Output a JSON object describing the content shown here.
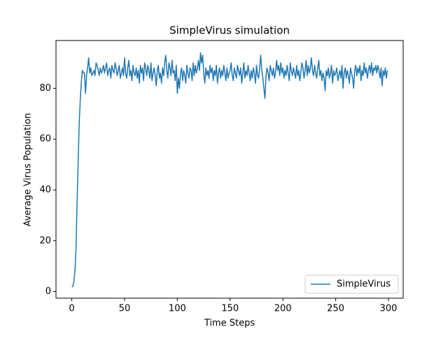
{
  "chart_data": {
    "type": "line",
    "title": "SimpleVirus simulation",
    "xlabel": "Time Steps",
    "ylabel": "Average Virus Population",
    "x": [
      0,
      1,
      2,
      3,
      4,
      5,
      6,
      7,
      8,
      9,
      10,
      11,
      12,
      13,
      14,
      15,
      16,
      17,
      18,
      19,
      20,
      21,
      22,
      23,
      24,
      25,
      26,
      27,
      28,
      29,
      30,
      31,
      32,
      33,
      34,
      35,
      36,
      37,
      38,
      39,
      40,
      41,
      42,
      43,
      44,
      45,
      46,
      47,
      48,
      49,
      50,
      51,
      52,
      53,
      54,
      55,
      56,
      57,
      58,
      59,
      60,
      61,
      62,
      63,
      64,
      65,
      66,
      67,
      68,
      69,
      70,
      71,
      72,
      73,
      74,
      75,
      76,
      77,
      78,
      79,
      80,
      81,
      82,
      83,
      84,
      85,
      86,
      87,
      88,
      89,
      90,
      91,
      92,
      93,
      94,
      95,
      96,
      97,
      98,
      99,
      100,
      101,
      102,
      103,
      104,
      105,
      106,
      107,
      108,
      109,
      110,
      111,
      112,
      113,
      114,
      115,
      116,
      117,
      118,
      119,
      120,
      121,
      122,
      123,
      124,
      125,
      126,
      127,
      128,
      129,
      130,
      131,
      132,
      133,
      134,
      135,
      136,
      137,
      138,
      139,
      140,
      141,
      142,
      143,
      144,
      145,
      146,
      147,
      148,
      149,
      150,
      151,
      152,
      153,
      154,
      155,
      156,
      157,
      158,
      159,
      160,
      161,
      162,
      163,
      164,
      165,
      166,
      167,
      168,
      169,
      170,
      171,
      172,
      173,
      174,
      175,
      176,
      177,
      178,
      179,
      180,
      181,
      182,
      183,
      184,
      185,
      186,
      187,
      188,
      189,
      190,
      191,
      192,
      193,
      194,
      195,
      196,
      197,
      198,
      199,
      200,
      201,
      202,
      203,
      204,
      205,
      206,
      207,
      208,
      209,
      210,
      211,
      212,
      213,
      214,
      215,
      216,
      217,
      218,
      219,
      220,
      221,
      222,
      223,
      224,
      225,
      226,
      227,
      228,
      229,
      230,
      231,
      232,
      233,
      234,
      235,
      236,
      237,
      238,
      239,
      240,
      241,
      242,
      243,
      244,
      245,
      246,
      247,
      248,
      249,
      250,
      251,
      252,
      253,
      254,
      255,
      256,
      257,
      258,
      259,
      260,
      261,
      262,
      263,
      264,
      265,
      266,
      267,
      268,
      269,
      270,
      271,
      272,
      273,
      274,
      275,
      276,
      277,
      278,
      279,
      280,
      281,
      282,
      283,
      284,
      285,
      286,
      287,
      288,
      289,
      290,
      291,
      292,
      293,
      294,
      295,
      296,
      297,
      298,
      299
    ],
    "series": [
      {
        "name": "SimpleVirus",
        "color": "#1f77b4",
        "values": [
          2,
          2,
          4,
          8,
          17,
          35,
          50,
          66,
          75,
          82,
          87,
          86,
          86,
          78,
          85,
          88,
          92,
          86,
          88,
          85,
          86,
          87,
          85,
          90,
          89,
          87,
          85,
          88,
          86,
          87,
          89,
          86,
          88,
          90,
          85,
          87,
          88,
          84,
          89,
          87,
          86,
          90,
          88,
          85,
          87,
          89,
          84,
          86,
          88,
          85,
          92,
          86,
          84,
          88,
          91,
          85,
          87,
          83,
          89,
          86,
          85,
          88,
          84,
          87,
          82,
          89,
          86,
          88,
          83,
          90,
          88,
          85,
          89,
          87,
          84,
          90,
          83,
          86,
          88,
          85,
          81,
          87,
          89,
          84,
          86,
          82,
          88,
          85,
          90,
          93,
          87,
          84,
          90,
          88,
          85,
          91,
          86,
          87,
          83,
          89,
          78,
          84,
          80,
          86,
          88,
          83,
          87,
          85,
          82,
          89,
          86,
          84,
          88,
          87,
          83,
          90,
          85,
          89,
          86,
          88,
          91,
          87,
          94,
          90,
          93,
          86,
          82,
          88,
          85,
          87,
          84,
          89,
          86,
          88,
          83,
          87,
          85,
          89,
          82,
          86,
          88,
          84,
          87,
          85,
          89,
          86,
          83,
          88,
          84,
          86,
          87,
          90,
          85,
          83,
          88,
          86,
          84,
          89,
          87,
          85,
          88,
          82,
          86,
          90,
          84,
          87,
          85,
          89,
          86,
          83,
          87,
          84,
          88,
          86,
          82,
          89,
          85,
          84,
          88,
          93,
          87,
          84,
          80,
          76,
          85,
          88,
          86,
          83,
          89,
          87,
          85,
          88,
          84,
          86,
          91,
          87,
          89,
          85,
          90,
          86,
          88,
          84,
          87,
          85,
          89,
          86,
          83,
          90,
          87,
          85,
          88,
          86,
          84,
          89,
          85,
          87,
          83,
          86,
          90,
          88,
          84,
          87,
          91,
          85,
          89,
          86,
          88,
          92,
          87,
          85,
          89,
          86,
          84,
          88,
          91,
          85,
          87,
          83,
          86,
          84,
          79,
          87,
          85,
          88,
          84,
          86,
          89,
          82,
          87,
          85,
          86,
          88,
          83,
          85,
          87,
          84,
          89,
          80,
          86,
          88,
          84,
          87,
          85,
          82,
          88,
          86,
          84,
          80,
          87,
          89,
          85,
          88,
          86,
          89,
          83,
          87,
          85,
          90,
          86,
          88,
          84,
          87,
          89,
          86,
          90,
          85,
          88,
          87,
          89,
          86,
          89,
          87,
          84,
          88,
          81,
          87,
          85,
          88,
          84,
          87
        ]
      }
    ],
    "xlim": [
      -14.95,
      313.95
    ],
    "ylim": [
      -2.6,
      98.8
    ],
    "xticks": [
      0,
      50,
      100,
      150,
      200,
      250,
      300
    ],
    "yticks": [
      0,
      20,
      40,
      60,
      80
    ],
    "grid": false,
    "legend": "lower right"
  }
}
